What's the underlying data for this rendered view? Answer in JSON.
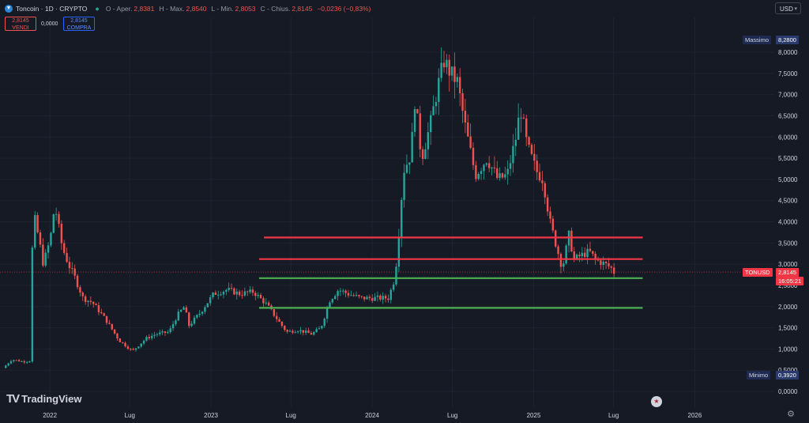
{
  "header": {
    "symbol_title": "Toncoin · 1D · CRYPTO",
    "open_label": "O - Aper.",
    "open_value": "2,8381",
    "high_label": "H - Max.",
    "high_value": "2,8540",
    "low_label": "L - Min.",
    "low_value": "2,8053",
    "close_label": "C - Chius.",
    "close_value": "2,8145",
    "change_value": "−0,0236 (−0,83%)"
  },
  "trade": {
    "sell_price": "2,8145",
    "sell_label": "VENDI",
    "spread": "0,0000",
    "buy_price": "2,8145",
    "buy_label": "COMPRA"
  },
  "currency_select": "USD",
  "markers": {
    "max_label": "Massimo",
    "max_value": "8,2800",
    "min_label": "Minimo",
    "min_value": "0,3920",
    "ticker_label": "TONUSD",
    "last_price": "2,8145",
    "countdown": "16:05:21"
  },
  "brand": "TradingView",
  "colors": {
    "background": "#161a25",
    "up": "#26a69a",
    "down": "#ef5350",
    "resistance": "#f23645",
    "support": "#4caf50",
    "text": "#d1d4dc"
  },
  "chart_data": {
    "type": "candlestick",
    "symbol": "TONUSD",
    "interval": "1D",
    "ylim": [
      0,
      8.6
    ],
    "y_ticks": [
      "0,0000",
      "0,5000",
      "1,0000",
      "1,5000",
      "2,0000",
      "2,5000",
      "3,0000",
      "3,5000",
      "4,0000",
      "4,5000",
      "5,0000",
      "5,5000",
      "6,0000",
      "6,5000",
      "7,0000",
      "7,5000",
      "8,0000"
    ],
    "y_tick_values": [
      0,
      0.5,
      1,
      1.5,
      2,
      2.5,
      3,
      3.5,
      4,
      4.5,
      5,
      5.5,
      6,
      6.5,
      7,
      7.5,
      8
    ],
    "xlim": [
      "2021-09-10",
      "2026-06-30"
    ],
    "x_ticks": [
      {
        "label": "2022",
        "date": "2022-01-01"
      },
      {
        "label": "Lug",
        "date": "2022-07-01"
      },
      {
        "label": "2023",
        "date": "2023-01-01"
      },
      {
        "label": "Lug",
        "date": "2023-07-01"
      },
      {
        "label": "2024",
        "date": "2024-01-01"
      },
      {
        "label": "Lug",
        "date": "2024-07-01"
      },
      {
        "label": "2025",
        "date": "2025-01-01"
      },
      {
        "label": "Lug",
        "date": "2025-07-01"
      },
      {
        "label": "2026",
        "date": "2026-01-01"
      }
    ],
    "price_path": [
      [
        "2021-09-20",
        0.55
      ],
      [
        "2021-10-10",
        0.75
      ],
      [
        "2021-11-05",
        0.7
      ],
      [
        "2021-11-20",
        0.72
      ],
      [
        "2021-11-25",
        3.3
      ],
      [
        "2021-11-28",
        4.2
      ],
      [
        "2021-12-10",
        3.6
      ],
      [
        "2021-12-20",
        3.0
      ],
      [
        "2022-01-05",
        3.6
      ],
      [
        "2022-01-15",
        4.4
      ],
      [
        "2022-02-01",
        3.4
      ],
      [
        "2022-02-15",
        3.0
      ],
      [
        "2022-03-01",
        2.7
      ],
      [
        "2022-03-20",
        2.2
      ],
      [
        "2022-04-10",
        2.1
      ],
      [
        "2022-05-10",
        1.7
      ],
      [
        "2022-06-10",
        1.2
      ],
      [
        "2022-07-10",
        0.95
      ],
      [
        "2022-08-10",
        1.25
      ],
      [
        "2022-09-01",
        1.35
      ],
      [
        "2022-10-01",
        1.4
      ],
      [
        "2022-10-20",
        1.8
      ],
      [
        "2022-11-05",
        2.0
      ],
      [
        "2022-11-15",
        1.55
      ],
      [
        "2022-12-10",
        1.85
      ],
      [
        "2023-01-10",
        2.3
      ],
      [
        "2023-02-10",
        2.4
      ],
      [
        "2023-03-10",
        2.3
      ],
      [
        "2023-04-10",
        2.35
      ],
      [
        "2023-05-10",
        2.05
      ],
      [
        "2023-06-10",
        1.6
      ],
      [
        "2023-06-25",
        1.4
      ],
      [
        "2023-07-20",
        1.45
      ],
      [
        "2023-08-20",
        1.35
      ],
      [
        "2023-09-10",
        1.5
      ],
      [
        "2023-09-30",
        2.15
      ],
      [
        "2023-10-20",
        2.4
      ],
      [
        "2023-11-10",
        2.3
      ],
      [
        "2023-12-10",
        2.2
      ],
      [
        "2024-01-20",
        2.2
      ],
      [
        "2024-02-10",
        2.2
      ],
      [
        "2024-02-25",
        2.7
      ],
      [
        "2024-03-05",
        3.8
      ],
      [
        "2024-03-15",
        5.2
      ],
      [
        "2024-04-01",
        5.6
      ],
      [
        "2024-04-10",
        6.9
      ],
      [
        "2024-04-25",
        5.5
      ],
      [
        "2024-05-15",
        6.3
      ],
      [
        "2024-06-01",
        7.2
      ],
      [
        "2024-06-15",
        7.8
      ],
      [
        "2024-06-30",
        7.5
      ],
      [
        "2024-07-15",
        7.3
      ],
      [
        "2024-08-01",
        6.3
      ],
      [
        "2024-08-15",
        5.6
      ],
      [
        "2024-08-25",
        5.1
      ],
      [
        "2024-09-20",
        5.5
      ],
      [
        "2024-10-15",
        5.0
      ],
      [
        "2024-11-05",
        5.1
      ],
      [
        "2024-11-25",
        6.0
      ],
      [
        "2024-12-05",
        6.7
      ],
      [
        "2024-12-20",
        5.8
      ],
      [
        "2025-01-10",
        5.2
      ],
      [
        "2025-01-25",
        5.0
      ],
      [
        "2025-02-10",
        4.0
      ],
      [
        "2025-02-25",
        3.4
      ],
      [
        "2025-03-10",
        2.9
      ],
      [
        "2025-03-25",
        3.7
      ],
      [
        "2025-04-05",
        3.1
      ],
      [
        "2025-04-20",
        3.2
      ],
      [
        "2025-05-10",
        3.3
      ],
      [
        "2025-05-25",
        3.1
      ],
      [
        "2025-06-15",
        3.0
      ],
      [
        "2025-06-30",
        2.9
      ],
      [
        "2025-07-05",
        2.81
      ]
    ],
    "candle_count": 230,
    "last_price": 2.8145,
    "high_value": 8.28,
    "low_value": 0.392,
    "horizontal_lines": [
      {
        "role": "resistance",
        "price": 3.63,
        "from": "2023-05-01",
        "to": "2025-09-05",
        "color": "#f23645"
      },
      {
        "role": "resistance",
        "price": 3.12,
        "from": "2023-04-20",
        "to": "2025-09-05",
        "color": "#f23645"
      },
      {
        "role": "support",
        "price": 2.67,
        "from": "2023-04-20",
        "to": "2025-09-05",
        "color": "#4caf50"
      },
      {
        "role": "support",
        "price": 1.97,
        "from": "2023-04-20",
        "to": "2025-09-05",
        "color": "#4caf50"
      }
    ],
    "legend": "none",
    "grid": true
  }
}
